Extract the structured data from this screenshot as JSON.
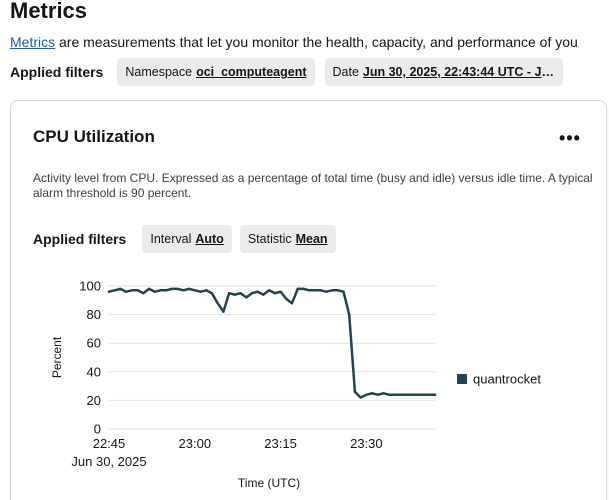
{
  "page": {
    "title": "Metrics",
    "intro_link": "Metrics",
    "intro_rest": " are measurements that let you monitor the health, capacity, and performance of you"
  },
  "filters": {
    "label": "Applied filters",
    "namespace_label": "Namespace",
    "namespace_value": "oci_computeagent",
    "date_label": "Date",
    "date_value": "Jun 30, 2025, 22:43:44 UTC - Ju..."
  },
  "card": {
    "title": "CPU Utilization",
    "more_icon": "ellipsis-icon",
    "description": "Activity level from CPU. Expressed as a percentage of total time (busy and idle) versus idle time. A typical alarm threshold is 90 percent.",
    "filters_label": "Applied filters",
    "interval_label": "Interval",
    "interval_value": "Auto",
    "statistic_label": "Statistic",
    "statistic_value": "Mean"
  },
  "chart_data": {
    "type": "line",
    "xlabel": "Time (UTC)",
    "ylabel": "Percent",
    "ylim": [
      0,
      100
    ],
    "yticks": [
      0,
      20,
      40,
      60,
      80,
      100
    ],
    "xlim": [
      "22:45",
      "23:42"
    ],
    "xticks": [
      {
        "value": "22:45",
        "label": "22:45",
        "sublabel": "Jun 30, 2025"
      },
      {
        "value": "23:00",
        "label": "23:00"
      },
      {
        "value": "23:15",
        "label": "23:15"
      },
      {
        "value": "23:30",
        "label": "23:30"
      }
    ],
    "grid": true,
    "legend": "right",
    "series": [
      {
        "name": "quantrocket",
        "color": "#24434f",
        "x": [
          "22:45",
          "22:46",
          "22:47",
          "22:48",
          "22:49",
          "22:50",
          "22:51",
          "22:52",
          "22:53",
          "22:54",
          "22:55",
          "22:56",
          "22:57",
          "22:58",
          "22:59",
          "23:00",
          "23:01",
          "23:02",
          "23:03",
          "23:04",
          "23:05",
          "23:06",
          "23:07",
          "23:08",
          "23:09",
          "23:10",
          "23:11",
          "23:12",
          "23:13",
          "23:14",
          "23:15",
          "23:16",
          "23:17",
          "23:18",
          "23:19",
          "23:20",
          "23:21",
          "23:22",
          "23:23",
          "23:24",
          "23:25",
          "23:26",
          "23:27",
          "23:28",
          "23:29",
          "23:30",
          "23:31",
          "23:32",
          "23:33",
          "23:34",
          "23:35",
          "23:36",
          "23:37",
          "23:38",
          "23:39",
          "23:40",
          "23:41",
          "23:42"
        ],
        "values": [
          96,
          97,
          98,
          96,
          97,
          97,
          95,
          98,
          96,
          97,
          97,
          98,
          98,
          97,
          98,
          97,
          96,
          97,
          95,
          88,
          82,
          95,
          94,
          95,
          92,
          95,
          96,
          94,
          97,
          95,
          96,
          91,
          88,
          98,
          98,
          97,
          97,
          97,
          96,
          97,
          97,
          96,
          80,
          26,
          22,
          24,
          25,
          24,
          25,
          24,
          24,
          24,
          24,
          24,
          24,
          24,
          24,
          24
        ]
      }
    ]
  }
}
